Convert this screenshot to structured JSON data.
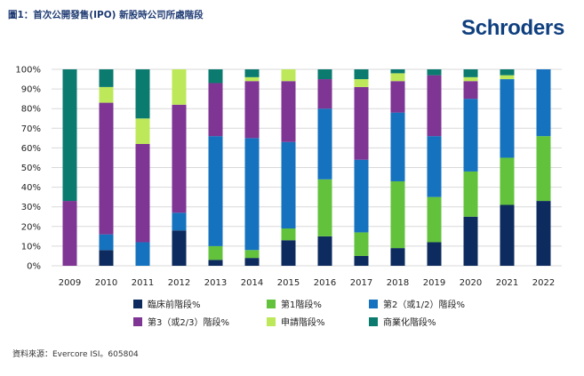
{
  "header": {
    "title": "圖1：首次公開發售(IPO) 新股時公司所處階段",
    "logo_text": "Schroders"
  },
  "footer": {
    "source": "資料來源：Evercore ISI。605804"
  },
  "colors": {
    "preclinical": "#0d2b5e",
    "phase1": "#63c23c",
    "phase2": "#1572be",
    "phase3": "#7e3593",
    "filing": "#bde85a",
    "commercial": "#0b7a6f"
  },
  "chart_data": {
    "type": "bar",
    "stacked": true,
    "categories": [
      "2009",
      "2010",
      "2011",
      "2012",
      "2013",
      "2014",
      "2015",
      "2016",
      "2017",
      "2018",
      "2019",
      "2020",
      "2021",
      "2022"
    ],
    "yticks": [
      "0%",
      "10%",
      "20%",
      "30%",
      "40%",
      "50%",
      "60%",
      "70%",
      "80%",
      "90%",
      "100%"
    ],
    "ylim": [
      0,
      100
    ],
    "grid": true,
    "legend_position": "bottom",
    "series": [
      {
        "name": "臨床前階段%",
        "key": "preclinical",
        "values": [
          0,
          8,
          0,
          18,
          3,
          4,
          13,
          15,
          5,
          9,
          12,
          25,
          31,
          33
        ]
      },
      {
        "name": "第1階段%",
        "key": "phase1",
        "values": [
          0,
          0,
          0,
          0,
          7,
          4,
          6,
          29,
          12,
          34,
          23,
          23,
          24,
          33
        ]
      },
      {
        "name": "第2（或1/2）階段%",
        "key": "phase2",
        "values": [
          0,
          8,
          12,
          9,
          56,
          57,
          44,
          36,
          37,
          35,
          31,
          37,
          40,
          34
        ]
      },
      {
        "name": "第3（或2/3）階段%",
        "key": "phase3",
        "values": [
          33,
          67,
          50,
          55,
          27,
          29,
          31,
          15,
          37,
          16,
          31,
          9,
          0,
          0
        ]
      },
      {
        "name": "申請階段%",
        "key": "filing",
        "values": [
          0,
          8,
          13,
          18,
          0,
          2,
          6,
          0,
          4,
          4,
          0,
          2,
          2,
          0
        ]
      },
      {
        "name": "商業化階段%",
        "key": "commercial",
        "values": [
          67,
          9,
          25,
          0,
          7,
          4,
          0,
          5,
          5,
          2,
          3,
          4,
          3,
          0
        ]
      }
    ]
  }
}
